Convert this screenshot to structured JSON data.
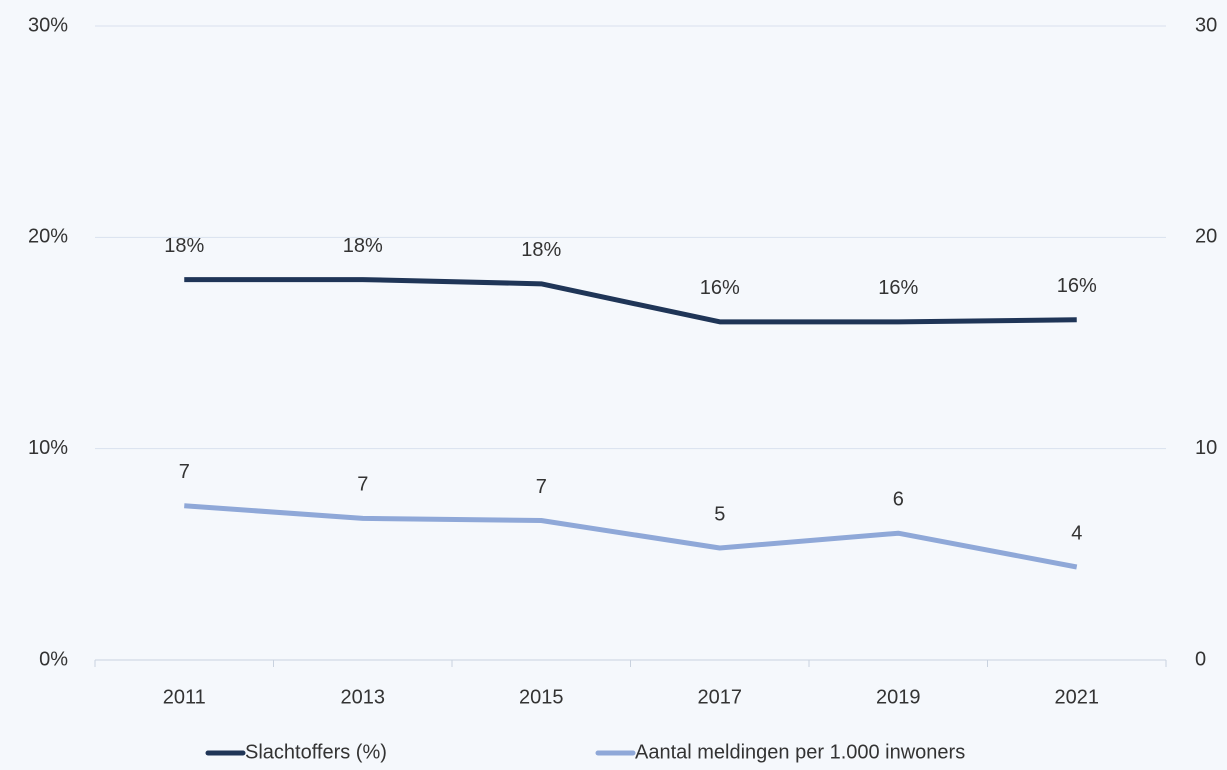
{
  "chart_data": {
    "type": "line",
    "categories": [
      "2011",
      "2013",
      "2015",
      "2017",
      "2019",
      "2021"
    ],
    "series": [
      {
        "name": "Slachtoffers (%)",
        "color": "#1f3557",
        "values": [
          18.0,
          18.0,
          17.8,
          16.0,
          16.0,
          16.1
        ],
        "value_labels": [
          "18%",
          "18%",
          "18%",
          "16%",
          "16%",
          "16%"
        ]
      },
      {
        "name": "Aantal meldingen per 1.000 inwoners",
        "color": "#8fa8d8",
        "axis": "y2",
        "values": [
          7.3,
          6.7,
          6.6,
          5.3,
          6.0,
          4.4
        ],
        "value_labels": [
          "7",
          "7",
          "7",
          "5",
          "6",
          "4"
        ]
      }
    ],
    "ylim": [
      0,
      30
    ],
    "yticks": [
      {
        "value": 0,
        "label": "0%"
      },
      {
        "value": 10,
        "label": "10%"
      },
      {
        "value": 20,
        "label": "20%"
      },
      {
        "value": 30,
        "label": "30%"
      }
    ],
    "y2lim": [
      0,
      30
    ],
    "y2ticks": [
      0,
      10,
      20,
      30
    ],
    "grid": true,
    "legend": "bottom"
  }
}
